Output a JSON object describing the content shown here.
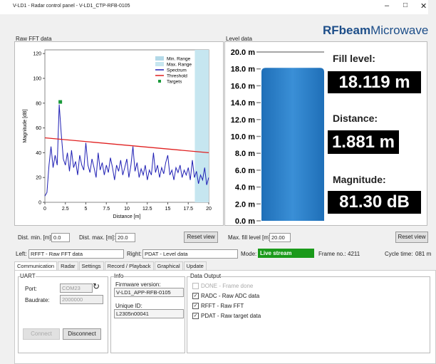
{
  "window": {
    "title": "V-LD1 - Radar control panel - V-LD1_CTP-RFB-0105",
    "logo": [
      "RFbeam",
      "Microwave"
    ]
  },
  "chart_data": [
    {
      "type": "line",
      "title": "Raw FFT data",
      "xlabel": "Distance [m]",
      "ylabel": "Magnitude [dB]",
      "xlim": [
        0,
        20
      ],
      "ylim": [
        0,
        123
      ],
      "xticks": [
        0,
        2.5,
        5,
        7.5,
        10,
        12.5,
        15,
        17.5,
        20
      ],
      "yticks": [
        0,
        20,
        40,
        60,
        80,
        100,
        120
      ],
      "grid": false,
      "legend": "upper right",
      "ranges": [
        {
          "name": "Min. Range",
          "color": "#b3d9e8",
          "value": 0,
          "side": "min"
        },
        {
          "name": "Max. Range",
          "color": "#c6e6f0",
          "value": 18.3,
          "side": "max"
        }
      ],
      "series": [
        {
          "name": "Spectrum",
          "color": "#1f1fb4",
          "x": [
            0,
            0.25,
            0.5,
            0.75,
            1,
            1.25,
            1.5,
            1.75,
            2,
            2.25,
            2.5,
            2.75,
            3,
            3.25,
            3.5,
            3.75,
            4,
            4.25,
            4.5,
            4.75,
            5,
            5.25,
            5.5,
            5.75,
            6,
            6.25,
            6.5,
            6.75,
            7,
            7.25,
            7.5,
            7.75,
            8,
            8.25,
            8.5,
            8.75,
            9,
            9.25,
            9.5,
            9.75,
            10,
            10.25,
            10.5,
            10.75,
            11,
            11.25,
            11.5,
            11.75,
            12,
            12.25,
            12.5,
            12.75,
            13,
            13.25,
            13.5,
            13.75,
            14,
            14.25,
            14.5,
            14.75,
            15,
            15.25,
            15.5,
            15.75,
            16,
            16.25,
            16.5,
            16.75,
            17,
            17.25,
            17.5,
            17.75,
            18,
            18.25,
            18.5,
            18.75,
            19,
            19.25,
            19.5,
            19.75,
            20
          ],
          "values": [
            5,
            8,
            30,
            45,
            28,
            38,
            30,
            79,
            55,
            35,
            30,
            40,
            25,
            42,
            28,
            33,
            22,
            38,
            30,
            26,
            48,
            30,
            24,
            35,
            28,
            20,
            40,
            26,
            32,
            22,
            30,
            24,
            36,
            28,
            18,
            30,
            25,
            34,
            22,
            28,
            35,
            20,
            30,
            45,
            25,
            32,
            20,
            27,
            22,
            30,
            18,
            26,
            22,
            40,
            24,
            30,
            20,
            28,
            23,
            32,
            38,
            22,
            26,
            18,
            28,
            24,
            30,
            20,
            26,
            22,
            28,
            18,
            34,
            20,
            25,
            15,
            22,
            18,
            28,
            14,
            20
          ]
        },
        {
          "name": "Threshold",
          "color": "#e02020",
          "x": [
            0,
            20
          ],
          "values": [
            52,
            40
          ]
        },
        {
          "name": "Targets",
          "color": "#1a9a3a",
          "x": [
            1.88
          ],
          "values": [
            81
          ],
          "marker": "square"
        }
      ]
    },
    {
      "type": "gauge",
      "title": "Level data",
      "ylim": [
        0,
        20
      ],
      "yticks": [
        {
          "value": 0,
          "label": "0.0 m"
        },
        {
          "value": 2,
          "label": "2.0 m"
        },
        {
          "value": 4,
          "label": "4.0 m"
        },
        {
          "value": 6,
          "label": "6.0 m"
        },
        {
          "value": 8,
          "label": "8.0 m"
        },
        {
          "value": 10,
          "label": "10.0 m"
        },
        {
          "value": 12,
          "label": "12.0 m"
        },
        {
          "value": 14,
          "label": "14.0 m"
        },
        {
          "value": 16,
          "label": "16.0 m"
        },
        {
          "value": 18,
          "label": "18.0 m"
        },
        {
          "value": 20,
          "label": "20.0 m"
        }
      ],
      "value": 18.119,
      "value_label": "18.119 m",
      "color": "#3a8fd6"
    }
  ],
  "readouts": {
    "fill_label": "Fill level:",
    "distance_label": "Distance:",
    "distance": "1.881 m",
    "magnitude_label": "Magnitude:",
    "magnitude": "81.30 dB"
  },
  "view_controls": {
    "dist_min_label": "Dist. min. [m]:",
    "dist_min": "0.0",
    "dist_max_label": "Dist. max. [m]:",
    "dist_max": "20.0",
    "reset_left": "Reset view",
    "max_fill_label": "Max. fill level [m]:",
    "max_fill": "20.00",
    "reset_right": "Reset view"
  },
  "selectors": {
    "left_label": "Left:",
    "left": "RFFT - Raw FFT data",
    "right_label": "Right:",
    "right": "PDAT - Level data",
    "mode_label": "Mode:",
    "mode": "Live stream",
    "frame_label": "Frame no.:",
    "frame": "4211",
    "cycle_label": "Cycle time:",
    "cycle": "081 m"
  },
  "tabs": [
    "Communication",
    "Radar",
    "Settings",
    "Record / Playback",
    "Graphical",
    "Update"
  ],
  "uart": {
    "title": "UART",
    "port_label": "Port:",
    "port": "COM23",
    "baud_label": "Baudrate:",
    "baud": "2000000",
    "connect": "Connect",
    "disconnect": "Disconnect"
  },
  "info": {
    "title": "Info",
    "fw_label": "Firmware version:",
    "fw": "V-LD1_APP-RFB-0105",
    "uid_label": "Unique ID:",
    "uid": "L2305n00041"
  },
  "data_output": {
    "title": "Data Output",
    "items": [
      {
        "label": "DONE - Frame done",
        "checked": false,
        "enabled": false
      },
      {
        "label": "RADC - Raw ADC data",
        "checked": true,
        "enabled": true
      },
      {
        "label": "RFFT - Raw FFT",
        "checked": true,
        "enabled": true
      },
      {
        "label": "PDAT - Raw target data",
        "checked": true,
        "enabled": true
      }
    ]
  }
}
